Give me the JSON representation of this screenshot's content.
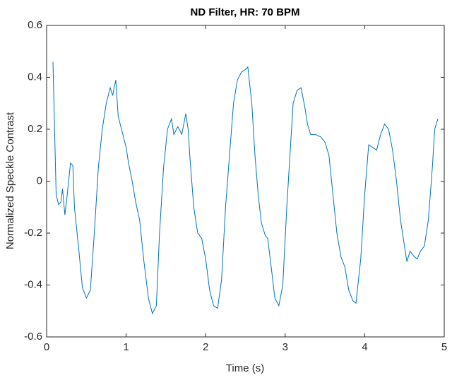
{
  "chart_data": {
    "type": "line",
    "title": "ND Filter, HR: 70 BPM",
    "x_label": "Time (s)",
    "y_label": "Normalized Speckle Contrast",
    "xlim": [
      0,
      5
    ],
    "ylim": [
      -0.6,
      0.6
    ],
    "xticks": [
      0,
      1,
      2,
      3,
      4,
      5
    ],
    "yticks": [
      -0.6,
      -0.4,
      -0.2,
      0,
      0.2,
      0.4,
      0.6
    ],
    "series": [
      {
        "color": "#0072bd",
        "x": [
          0.08,
          0.1,
          0.12,
          0.15,
          0.18,
          0.2,
          0.23,
          0.26,
          0.3,
          0.33,
          0.35,
          0.4,
          0.45,
          0.5,
          0.55,
          0.6,
          0.65,
          0.7,
          0.75,
          0.8,
          0.83,
          0.87,
          0.9,
          0.95,
          1.0,
          1.03,
          1.07,
          1.12,
          1.17,
          1.22,
          1.28,
          1.33,
          1.38,
          1.42,
          1.47,
          1.52,
          1.57,
          1.6,
          1.65,
          1.7,
          1.75,
          1.78,
          1.8,
          1.85,
          1.9,
          1.95,
          2.0,
          2.05,
          2.1,
          2.15,
          2.2,
          2.25,
          2.3,
          2.35,
          2.4,
          2.45,
          2.5,
          2.53,
          2.58,
          2.62,
          2.66,
          2.7,
          2.75,
          2.78,
          2.82,
          2.87,
          2.92,
          2.97,
          3.02,
          3.06,
          3.1,
          3.15,
          3.2,
          3.25,
          3.28,
          3.32,
          3.38,
          3.45,
          3.5,
          3.55,
          3.6,
          3.65,
          3.7,
          3.75,
          3.8,
          3.85,
          3.89,
          3.95,
          4.0,
          4.05,
          4.1,
          4.15,
          4.2,
          4.25,
          4.3,
          4.35,
          4.4,
          4.45,
          4.5,
          4.53,
          4.57,
          4.62,
          4.66,
          4.7,
          4.75,
          4.8,
          4.85,
          4.88,
          4.92
        ],
        "values": [
          0.46,
          0.2,
          -0.05,
          -0.09,
          -0.08,
          -0.03,
          -0.13,
          -0.05,
          0.07,
          0.06,
          -0.1,
          -0.25,
          -0.41,
          -0.45,
          -0.42,
          -0.2,
          0.05,
          0.2,
          0.3,
          0.36,
          0.33,
          0.39,
          0.25,
          0.19,
          0.13,
          0.07,
          0.01,
          -0.08,
          -0.15,
          -0.3,
          -0.45,
          -0.51,
          -0.48,
          -0.2,
          0.05,
          0.2,
          0.24,
          0.18,
          0.21,
          0.18,
          0.26,
          0.2,
          0.1,
          -0.1,
          -0.2,
          -0.22,
          -0.3,
          -0.42,
          -0.48,
          -0.49,
          -0.38,
          -0.1,
          0.1,
          0.3,
          0.39,
          0.42,
          0.43,
          0.44,
          0.3,
          0.1,
          -0.05,
          -0.16,
          -0.21,
          -0.22,
          -0.32,
          -0.45,
          -0.48,
          -0.4,
          -0.1,
          0.1,
          0.3,
          0.35,
          0.36,
          0.28,
          0.22,
          0.18,
          0.18,
          0.17,
          0.15,
          0.1,
          -0.05,
          -0.2,
          -0.29,
          -0.33,
          -0.42,
          -0.46,
          -0.47,
          -0.3,
          -0.05,
          0.14,
          0.13,
          0.12,
          0.18,
          0.22,
          0.2,
          0.12,
          0.0,
          -0.15,
          -0.25,
          -0.31,
          -0.27,
          -0.29,
          -0.3,
          -0.27,
          -0.25,
          -0.15,
          0.05,
          0.2,
          0.24
        ]
      }
    ]
  }
}
